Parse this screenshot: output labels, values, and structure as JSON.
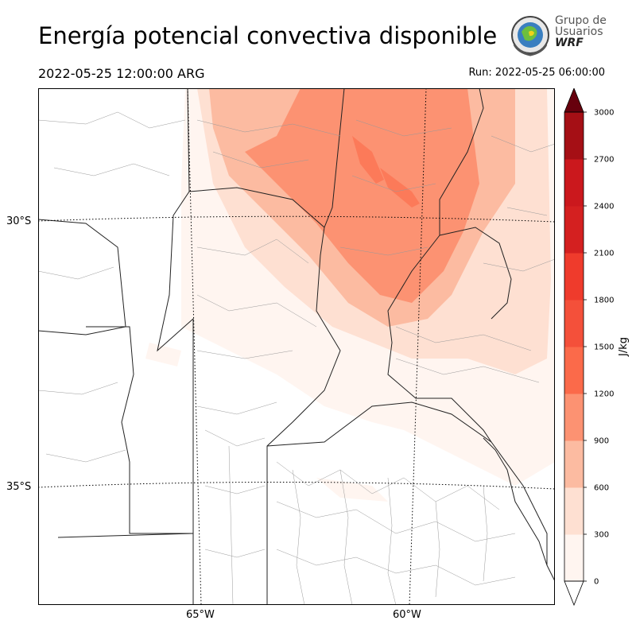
{
  "header": {
    "title": "Energía potencial convectiva disponible",
    "valid_time": "2022-05-25 12:00:00 ARG",
    "run_time": "Run: 2022-05-25 06:00:00"
  },
  "logo": {
    "line1": "Grupo de",
    "line2": "Usuarios",
    "line3": "WRF"
  },
  "map": {
    "variable": "CAPE",
    "lat_labels": [
      "30°S",
      "35°S"
    ],
    "lon_labels": [
      "65°W",
      "60°W"
    ]
  },
  "colorbar": {
    "unit": "J/kg",
    "ticks": [
      "0",
      "300",
      "600",
      "900",
      "1200",
      "1500",
      "1800",
      "2100",
      "2400",
      "2700",
      "3000"
    ],
    "levels": [
      0,
      300,
      600,
      900,
      1200,
      1500,
      1800,
      2100,
      2400,
      2700,
      3000
    ],
    "colors": [
      "#fff5f0",
      "#fee0d2",
      "#fcbba1",
      "#fc9272",
      "#fb6a4a",
      "#f4503a",
      "#ef3b2c",
      "#d42020",
      "#cb181d",
      "#a50f15",
      "#8b0a12"
    ],
    "extend_over_color": "#67000d",
    "extend_under_color": "#ffffff"
  }
}
